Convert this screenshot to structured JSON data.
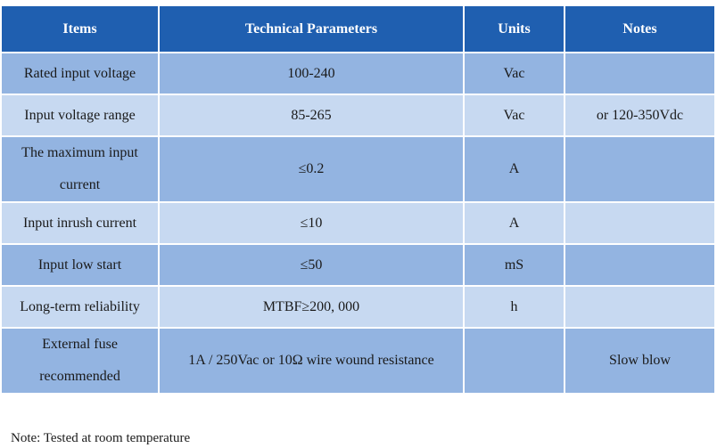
{
  "table": {
    "header": [
      "Items",
      "Technical Parameters",
      "Units",
      "Notes"
    ],
    "rows": [
      {
        "item": "Rated input voltage",
        "parameter": "100-240",
        "unit": "Vac"
      },
      {
        "item": "Input voltage range",
        "parameter": "85-265",
        "unit": "Vac",
        "note": "or 120-350Vdc"
      },
      {
        "item": "The maximum input current",
        "parameter": "≤0.2",
        "unit": "A"
      },
      {
        "item": "Input inrush current",
        "parameter": "≤10",
        "unit": "A"
      },
      {
        "item": "Input low start",
        "parameter": "≤50",
        "unit": "mS"
      },
      {
        "item": "Long-term reliability",
        "parameter": "MTBF≥200, 000",
        "unit": "h"
      },
      {
        "item": "External fuse recommended",
        "parameter": "1A / 250Vac or 10Ω wire wound resistance",
        "note": "Slow blow"
      }
    ]
  },
  "note": "Note: Tested at room temperature"
}
